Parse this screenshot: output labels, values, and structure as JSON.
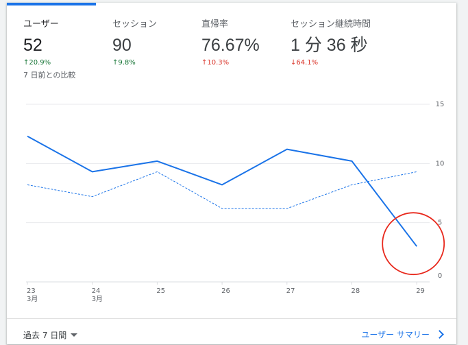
{
  "metrics": [
    {
      "label": "ユーザー",
      "value": "52",
      "delta": "20.9%",
      "arrow": "↑",
      "note": "7 日前との比較"
    },
    {
      "label": "セッション",
      "value": "90",
      "delta": "9.8%",
      "arrow": "↑"
    },
    {
      "label": "直帰率",
      "value": "76.67%",
      "delta": "10.3%",
      "arrow": "↑"
    },
    {
      "label": "セッション継続時間",
      "value": "1 分 36 秒",
      "delta": "64.1%",
      "arrow": "↓"
    }
  ],
  "footer": {
    "range_label": "過去 7 日間",
    "summary_link": "ユーザー サマリー"
  },
  "colors": {
    "accent": "#1a73e8",
    "positive": "#137333",
    "negative": "#d93025",
    "highlight_circle": "#e8281c"
  },
  "chart_data": {
    "type": "line",
    "x": [
      "23",
      "24",
      "25",
      "26",
      "27",
      "28",
      "29"
    ],
    "x_sublabels": [
      "3月",
      "3月",
      "",
      "",
      "",
      "",
      ""
    ],
    "series": [
      {
        "values": [
          12.3,
          9.3,
          10.2,
          8.2,
          11.2,
          10.2,
          3.0
        ],
        "style": "solid"
      },
      {
        "values": [
          8.2,
          7.2,
          9.3,
          6.2,
          6.2,
          8.2,
          9.3
        ],
        "style": "dashed"
      }
    ],
    "yticks": [
      "15",
      "10",
      "5",
      "0"
    ],
    "ylim": [
      0,
      15
    ],
    "grid": true,
    "annotation": "red circle around last point (29)"
  }
}
